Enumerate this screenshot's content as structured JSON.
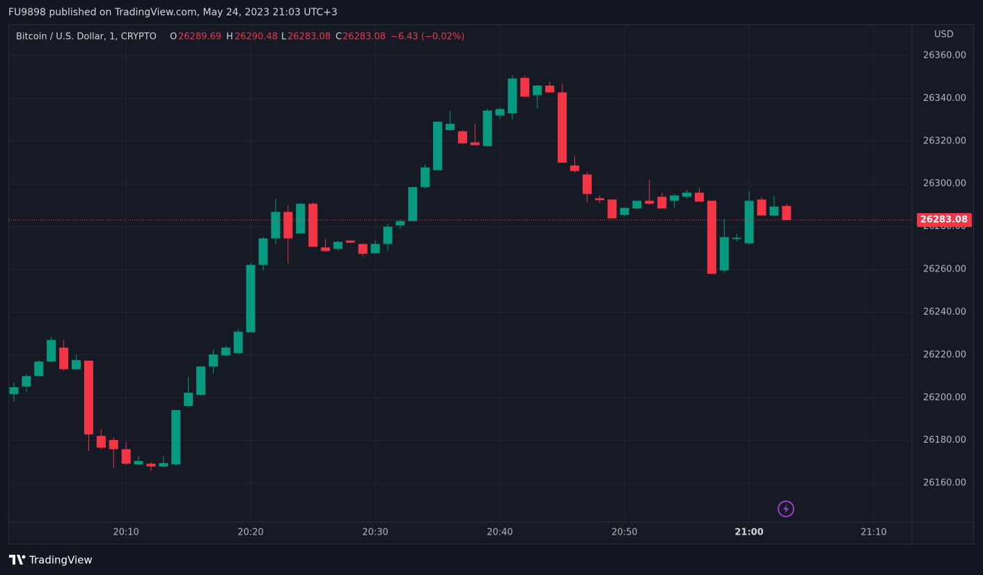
{
  "header": {
    "published": "FU9898 published on TradingView.com, May 24, 2023 21:03 UTC+3"
  },
  "footer": {
    "brand": "TradingView"
  },
  "chart_data": {
    "type": "candlestick",
    "title": "Bitcoin / U.S. Dollar, 1, CRYPTO",
    "ohlc_labels": [
      "O",
      "H",
      "L",
      "C"
    ],
    "change": "−6.43 (−0.02%)",
    "y_axis_unit": "USD",
    "up_color": "#089981",
    "down_color": "#f23645",
    "grid": true,
    "last_price": 26283.08,
    "categories": [
      null,
      null,
      null,
      null,
      null,
      null,
      null,
      null,
      null,
      "20:10",
      null,
      null,
      null,
      null,
      null,
      null,
      null,
      null,
      null,
      "20:20",
      null,
      null,
      null,
      null,
      null,
      null,
      null,
      null,
      null,
      "20:30",
      null,
      null,
      null,
      null,
      null,
      null,
      null,
      null,
      null,
      "20:40",
      null,
      null,
      null,
      null,
      null,
      null,
      null,
      null,
      null,
      "20:50",
      null,
      null,
      null,
      null,
      null,
      null,
      null,
      null,
      null,
      "21:00",
      null,
      null,
      null,
      null,
      null,
      null,
      null,
      null,
      null,
      "21:10",
      null,
      null,
      null
    ],
    "open": [
      26201.6,
      26205.2,
      26210.1,
      26216.9,
      26223.4,
      26213.3,
      26217.3,
      26182.1,
      26180.2,
      26175.9,
      26168.8,
      26169.1,
      26167.8,
      26168.8,
      26196.1,
      26201.3,
      26214.6,
      26219.8,
      26220.8,
      26230.6,
      26262.1,
      26274.5,
      26286.9,
      26276.8,
      26290.7,
      26270.3,
      26269.6,
      26273.5,
      26271.9,
      26267.6,
      26271.9,
      26280.6,
      26282.6,
      26298.5,
      26306.4,
      26325.2,
      26324.6,
      26319.4,
      26317.7,
      26332,
      26333,
      26349.6,
      26341.5,
      26346,
      26342.8,
      26308.6,
      26304.4,
      26293.3,
      26292.7,
      26285.5,
      26288.5,
      26292.1,
      26294,
      26292.1,
      26294,
      26295.9,
      26292.1,
      26259.5,
      26274.2,
      26272.2,
      26292.7,
      26285.2,
      26289.69,
      null,
      null,
      null,
      null,
      null,
      null,
      null,
      null,
      null,
      null
    ],
    "high": [
      26207.2,
      26211.1,
      26217.6,
      26228.3,
      26227,
      26220.2,
      26217.3,
      26185.4,
      26181.5,
      26179.2,
      26172.7,
      26169.8,
      26172.7,
      26194.2,
      26209.8,
      26214.6,
      26222.5,
      26224.4,
      26232.2,
      26263.1,
      26275.2,
      26293,
      26290.1,
      26291.1,
      26291.4,
      26274.2,
      26273.5,
      26273.8,
      26272.2,
      26273.5,
      26281.3,
      26283.3,
      26298.5,
      26309.3,
      26329.1,
      26334.3,
      26325.2,
      26328.1,
      26335.3,
      26335.6,
      26350.6,
      26350.6,
      26346.4,
      26348,
      26346.7,
      26312.9,
      26305.7,
      26294.6,
      26292.7,
      26288.8,
      26292.4,
      26302.1,
      26295.9,
      26295.3,
      26297.2,
      26297.9,
      26292.1,
      26283.6,
      26276.8,
      26296.6,
      26293.7,
      26294.3,
      26290.48,
      null,
      null,
      null,
      null,
      null,
      null,
      null,
      null,
      null,
      null
    ],
    "low": [
      26198.1,
      26202.9,
      26210,
      26216.6,
      26212.7,
      26213,
      26175,
      26175.9,
      26167.2,
      26168.5,
      26168.5,
      26165.9,
      26167.2,
      26168.1,
      26195.5,
      26201,
      26211.1,
      26219.2,
      26220.5,
      26230.6,
      26259.5,
      26271.9,
      26262.8,
      26276.8,
      26270.6,
      26268.3,
      26268.6,
      26272.2,
      26266,
      26267.3,
      26268.6,
      26279,
      26282.6,
      26297.9,
      26306.4,
      26324.9,
      26318.4,
      26318.1,
      26317.7,
      26330.4,
      26330.1,
      26340.8,
      26335.3,
      26342.8,
      26309.9,
      26305.4,
      26291.4,
      26291.1,
      26283.9,
      26284.9,
      26288.1,
      26290.4,
      26288.5,
      26288.8,
      26293.3,
      26291.7,
      26257.9,
      26258.2,
      26273.2,
      26271.6,
      26285.2,
      26284.9,
      26283.08,
      null,
      null,
      null,
      null,
      null,
      null,
      null,
      null,
      null,
      null
    ],
    "close": [
      26204.9,
      26210.1,
      26216.9,
      26227,
      26213.3,
      26217.6,
      26182.8,
      26176.6,
      26175.9,
      26169.1,
      26170.4,
      26167.8,
      26169.4,
      26194.2,
      26202.3,
      26214.6,
      26220.2,
      26223.4,
      26230.9,
      26262.1,
      26274.5,
      26286.9,
      26274.5,
      26290.7,
      26270.6,
      26268.6,
      26272.9,
      26272.5,
      26267.3,
      26271.9,
      26280,
      26282.6,
      26298.5,
      26307.7,
      26329.1,
      26328.1,
      26319,
      26318.1,
      26334.3,
      26335,
      26349.3,
      26340.8,
      26346,
      26342.8,
      26309.9,
      26306,
      26295.3,
      26292.4,
      26283.9,
      26288.8,
      26292.1,
      26290.7,
      26288.5,
      26294.6,
      26295.9,
      26291.7,
      26257.9,
      26275.1,
      26274.8,
      26292.1,
      26285.2,
      26289.4,
      26283.08,
      null,
      null,
      null,
      null,
      null,
      null,
      null,
      null,
      null,
      null
    ],
    "ylim": [
      26141.8,
      26374.3
    ],
    "yticks": [
      {
        "value": 26160,
        "label": "26160.00"
      },
      {
        "value": 26180,
        "label": "26180.00"
      },
      {
        "value": 26200,
        "label": "26200.00"
      },
      {
        "value": 26220,
        "label": "26220.00"
      },
      {
        "value": 26240,
        "label": "26240.00"
      },
      {
        "value": 26260,
        "label": "26260.00"
      },
      {
        "value": 26280,
        "label": "26280.00"
      },
      {
        "value": 26300,
        "label": "26300.00"
      },
      {
        "value": 26320,
        "label": "26320.00"
      },
      {
        "value": 26340,
        "label": "26340.00"
      },
      {
        "value": 26360,
        "label": "26360.00"
      }
    ]
  }
}
